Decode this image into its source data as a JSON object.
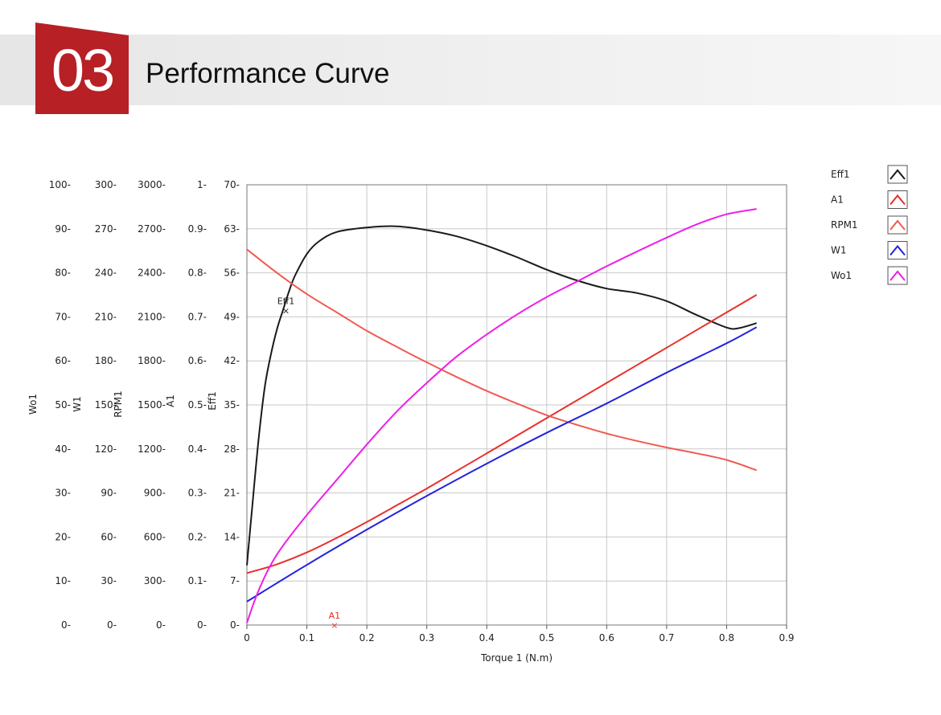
{
  "header": {
    "number": "03",
    "title": "Performance Curve"
  },
  "chart_data": {
    "type": "line",
    "xlabel": "Torque 1 (N.m)",
    "xlim": [
      0,
      0.9
    ],
    "x_ticks": [
      "0",
      "0.1",
      "0.2",
      "0.3",
      "0.4",
      "0.5",
      "0.6",
      "0.7",
      "0.8",
      "0.9"
    ],
    "grid": true,
    "legend_position": "right",
    "y_axes": [
      {
        "label": "Wo1",
        "ticks": [
          "0",
          "10",
          "20",
          "30",
          "40",
          "50",
          "60",
          "70",
          "80",
          "90",
          "100"
        ],
        "range": [
          0,
          100
        ]
      },
      {
        "label": "W1",
        "ticks": [
          "0",
          "30",
          "60",
          "90",
          "120",
          "150",
          "180",
          "210",
          "240",
          "270",
          "300"
        ],
        "range": [
          0,
          300
        ]
      },
      {
        "label": "RPM1",
        "ticks": [
          "0",
          "300",
          "600",
          "900",
          "1200",
          "1500",
          "1800",
          "2100",
          "2400",
          "2700",
          "3000"
        ],
        "range": [
          0,
          3000
        ]
      },
      {
        "label": "A1",
        "ticks": [
          "0",
          "0.1",
          "0.2",
          "0.3",
          "0.4",
          "0.5",
          "0.6",
          "0.7",
          "0.8",
          "0.9",
          "1"
        ],
        "range": [
          0,
          1
        ]
      },
      {
        "label": "Eff1",
        "ticks": [
          "0",
          "7",
          "14",
          "21",
          "28",
          "35",
          "42",
          "49",
          "56",
          "63",
          "70"
        ],
        "range": [
          0,
          70
        ]
      }
    ],
    "series": [
      {
        "name": "Eff1",
        "color": "#1a1a1a",
        "axis": 4,
        "x": [
          0,
          0.01,
          0.02,
          0.03,
          0.04,
          0.05,
          0.06,
          0.07,
          0.08,
          0.1,
          0.12,
          0.15,
          0.2,
          0.25,
          0.3,
          0.35,
          0.4,
          0.45,
          0.5,
          0.55,
          0.6,
          0.65,
          0.7,
          0.75,
          0.8,
          0.82,
          0.85
        ],
        "y": [
          9.5,
          20,
          30,
          38,
          43,
          47,
          50,
          53,
          55.5,
          59,
          61,
          62.5,
          63.2,
          63.4,
          62.8,
          61.8,
          60.3,
          58.5,
          56.5,
          54.8,
          53.5,
          52.8,
          51.5,
          49.3,
          47.3,
          47.2,
          48
        ]
      },
      {
        "name": "A1",
        "color": "#e8302a",
        "axis": 3,
        "x": [
          0,
          0.05,
          0.1,
          0.15,
          0.2,
          0.25,
          0.3,
          0.35,
          0.4,
          0.45,
          0.5,
          0.55,
          0.6,
          0.65,
          0.7,
          0.75,
          0.8,
          0.85
        ],
        "y": [
          0.118,
          0.138,
          0.165,
          0.198,
          0.234,
          0.272,
          0.31,
          0.35,
          0.39,
          0.43,
          0.47,
          0.51,
          0.55,
          0.59,
          0.63,
          0.67,
          0.71,
          0.75
        ]
      },
      {
        "name": "RPM1",
        "color": "#f05a52",
        "axis": 2,
        "x": [
          0,
          0.05,
          0.1,
          0.15,
          0.2,
          0.25,
          0.3,
          0.35,
          0.4,
          0.45,
          0.5,
          0.55,
          0.6,
          0.65,
          0.7,
          0.75,
          0.8,
          0.85
        ],
        "y": [
          2560,
          2400,
          2255,
          2130,
          2005,
          1895,
          1790,
          1690,
          1595,
          1510,
          1430,
          1365,
          1305,
          1255,
          1210,
          1170,
          1125,
          1055
        ]
      },
      {
        "name": "W1",
        "color": "#2323dd",
        "axis": 1,
        "x": [
          0,
          0.1,
          0.2,
          0.3,
          0.4,
          0.5,
          0.6,
          0.7,
          0.8,
          0.85
        ],
        "y": [
          16,
          41,
          65,
          88,
          110,
          131,
          151,
          172,
          192,
          203
        ]
      },
      {
        "name": "Wo1",
        "color": "#ee1ee8",
        "axis": 0,
        "x": [
          0,
          0.02,
          0.05,
          0.1,
          0.15,
          0.2,
          0.25,
          0.3,
          0.35,
          0.4,
          0.45,
          0.5,
          0.55,
          0.6,
          0.65,
          0.7,
          0.75,
          0.8,
          0.85
        ],
        "y": [
          0.5,
          8,
          16,
          25,
          33,
          41,
          48.5,
          55,
          61,
          66,
          70.5,
          74.5,
          78,
          81.5,
          84.8,
          88,
          91,
          93.3,
          94.5
        ]
      }
    ],
    "annotations": [
      {
        "text": "Eff1",
        "series": "Eff1",
        "x": 0.065,
        "y": 50,
        "color": "#222222"
      },
      {
        "text": "A1",
        "series": "A1",
        "x": 0.146,
        "y": 0.0,
        "color": "#e8302a"
      }
    ]
  }
}
